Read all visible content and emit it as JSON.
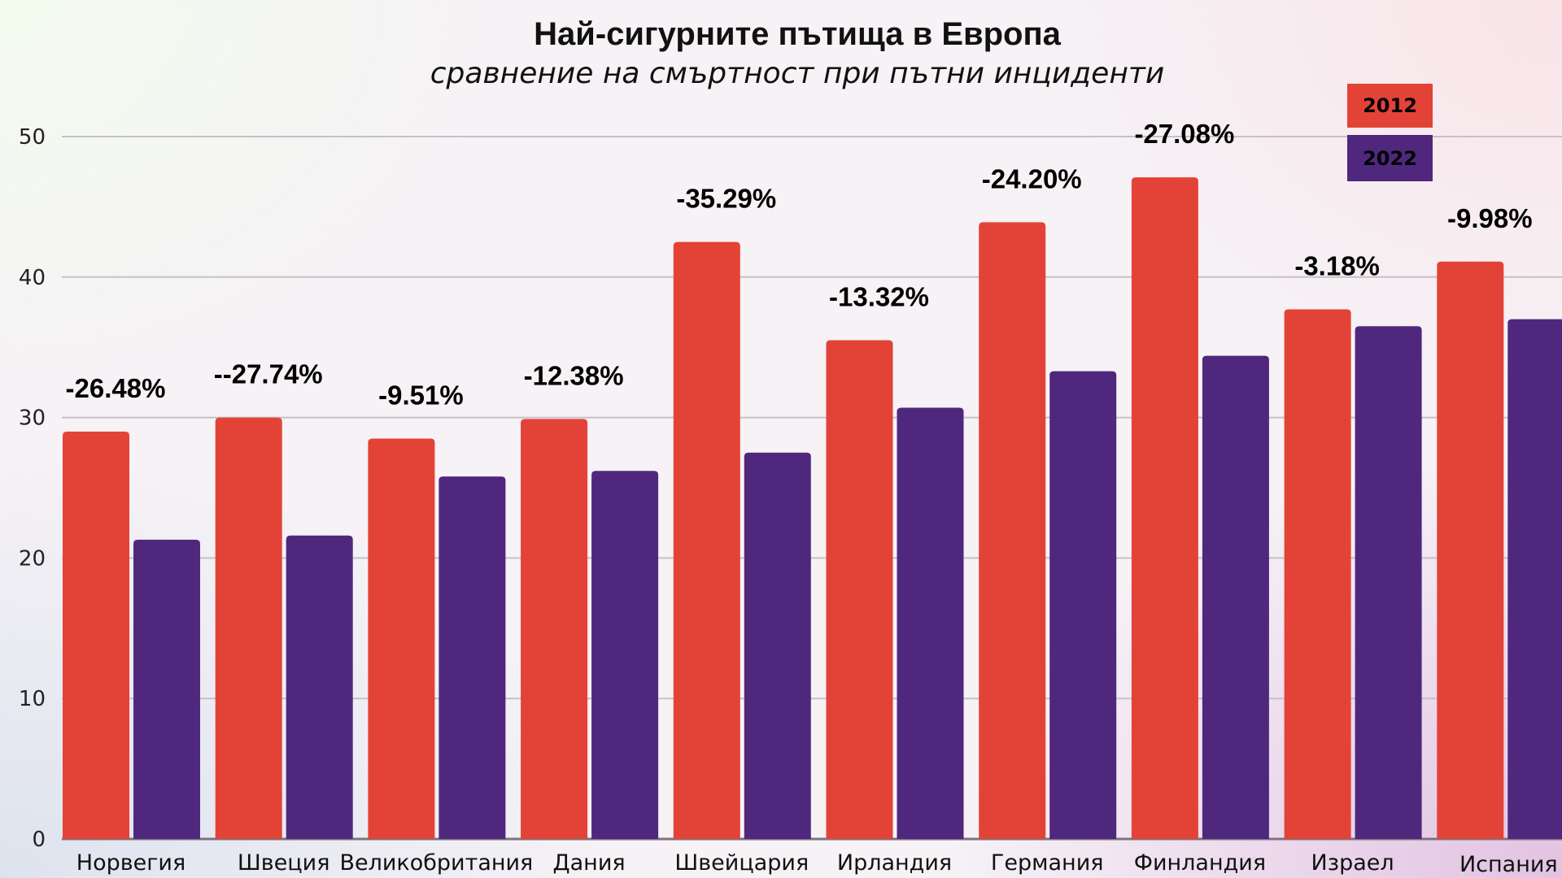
{
  "chart_data": {
    "type": "bar",
    "title": "Най-сигурните пътища в Европа",
    "subtitle": "сравнение на смъртност при пътни инциденти",
    "xlabel": "",
    "ylabel": "",
    "ylim": [
      0,
      50
    ],
    "yticks": [
      "0",
      "10",
      "20",
      "30",
      "40",
      "50"
    ],
    "grid": true,
    "legend_placement": "top-right",
    "categories": [
      "Норвегия",
      "Швеция",
      "Великобритания",
      "Дания",
      "Швейцария",
      "Ирландия",
      "Германия",
      "Финландия",
      "Израел",
      "Испания"
    ],
    "series": [
      {
        "name": "2012",
        "color": "#e34336",
        "values": [
          29.0,
          30.0,
          28.5,
          29.9,
          42.5,
          35.5,
          43.9,
          47.1,
          37.7,
          41.1
        ]
      },
      {
        "name": "2022",
        "color": "#4f287e",
        "values": [
          21.3,
          21.6,
          25.8,
          26.2,
          27.5,
          30.7,
          33.3,
          34.4,
          36.5,
          37.0
        ]
      }
    ],
    "annotations": [
      "-26.48%",
      "--27.74%",
      "-9.51%",
      "-12.38%",
      "-35.29%",
      "-13.32%",
      "-24.20%",
      "-27.08%",
      "-3.18%",
      "-9.98%"
    ]
  }
}
